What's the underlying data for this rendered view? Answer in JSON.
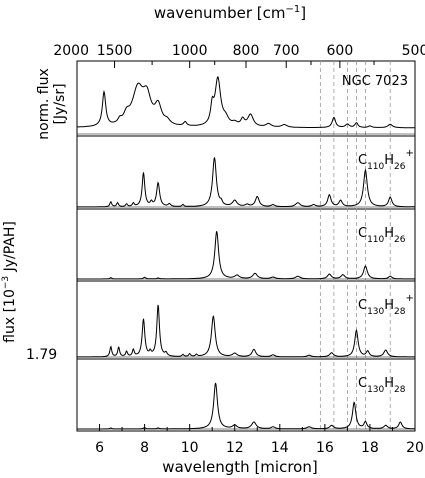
{
  "chart_data": {
    "type": "line",
    "top_axis": {
      "label": "wavenumber [cm",
      "label_sup": "−1",
      "label_end": "]",
      "ticks": [
        {
          "label": "2000",
          "value": 2000
        },
        {
          "label": "1500",
          "value": 1500
        },
        {
          "label": "1000",
          "value": 1000
        },
        {
          "label": "800",
          "value": 800
        },
        {
          "label": "700",
          "value": 700
        },
        {
          "label": "600",
          "value": 600
        },
        {
          "label": "500",
          "value": 500
        }
      ],
      "minor_ticks": [
        1200,
        900,
        650,
        550
      ]
    },
    "xlabel": "wavelength [micron]",
    "xlim": [
      5,
      20
    ],
    "xticks": [
      6,
      8,
      10,
      12,
      14,
      16,
      18,
      20
    ],
    "ylabel_top": [
      "norm. flux",
      "[Jy/sr]"
    ],
    "ylabel_bottom": "flux [10",
    "ylabel_bottom_sup": "−3",
    "ylabel_bottom_end": " Jy/PAH]",
    "scale_label": "1.79",
    "reference_lines": [
      15.8,
      16.4,
      17.0,
      17.4,
      17.8,
      18.9
    ],
    "series": [
      {
        "name": "NGC 7023",
        "name_parts": [],
        "baseline": 0.18,
        "peaks": [
          [
            6.2,
            1.0,
            0.09
          ],
          [
            6.9,
            0.12,
            0.1
          ],
          [
            7.2,
            0.25,
            0.15
          ],
          [
            7.7,
            1.08,
            0.3
          ],
          [
            8.1,
            0.75,
            0.22
          ],
          [
            8.6,
            0.55,
            0.18
          ],
          [
            9.0,
            0.12,
            0.15
          ],
          [
            9.8,
            0.12,
            0.08
          ],
          [
            11.0,
            0.5,
            0.08
          ],
          [
            11.25,
            1.4,
            0.15
          ],
          [
            11.6,
            0.2,
            0.15
          ],
          [
            12.0,
            0.1,
            0.15
          ],
          [
            12.35,
            0.2,
            0.1
          ],
          [
            12.7,
            0.36,
            0.15
          ],
          [
            13.5,
            0.1,
            0.15
          ],
          [
            14.2,
            0.08,
            0.15
          ],
          [
            16.4,
            0.3,
            0.09
          ],
          [
            17.0,
            0.1,
            0.1
          ],
          [
            17.4,
            0.14,
            0.08
          ],
          [
            18.0,
            0.05,
            0.1
          ],
          [
            18.9,
            0.1,
            0.12
          ]
        ]
      },
      {
        "name": "",
        "name_parts": [
          "C",
          "110",
          "H",
          "26",
          "+"
        ],
        "baseline": 0,
        "peaks": [
          [
            6.5,
            0.15,
            0.05
          ],
          [
            6.8,
            0.12,
            0.05
          ],
          [
            7.2,
            0.08,
            0.05
          ],
          [
            7.5,
            0.1,
            0.05
          ],
          [
            7.95,
            1.0,
            0.07
          ],
          [
            8.3,
            0.12,
            0.06
          ],
          [
            8.6,
            0.7,
            0.08
          ],
          [
            9.1,
            0.08,
            0.07
          ],
          [
            9.7,
            0.06,
            0.05
          ],
          [
            11.1,
            1.45,
            0.1
          ],
          [
            11.4,
            0.1,
            0.06
          ],
          [
            12.0,
            0.18,
            0.12
          ],
          [
            12.55,
            0.06,
            0.1
          ],
          [
            13.0,
            0.3,
            0.1
          ],
          [
            13.7,
            0.06,
            0.1
          ],
          [
            14.8,
            0.12,
            0.12
          ],
          [
            15.5,
            0.06,
            0.1
          ],
          [
            16.2,
            0.35,
            0.09
          ],
          [
            16.7,
            0.18,
            0.09
          ],
          [
            17.8,
            1.08,
            0.1
          ],
          [
            18.9,
            0.28,
            0.09
          ]
        ]
      },
      {
        "name": "",
        "name_parts": [
          "C",
          "110",
          "H",
          "26",
          ""
        ],
        "baseline": 0,
        "peaks": [
          [
            6.5,
            0.04,
            0.05
          ],
          [
            8.0,
            0.05,
            0.06
          ],
          [
            8.6,
            0.03,
            0.06
          ],
          [
            11.2,
            1.4,
            0.1
          ],
          [
            12.1,
            0.1,
            0.12
          ],
          [
            12.9,
            0.16,
            0.12
          ],
          [
            13.7,
            0.05,
            0.12
          ],
          [
            14.8,
            0.08,
            0.12
          ],
          [
            16.2,
            0.14,
            0.1
          ],
          [
            16.8,
            0.12,
            0.1
          ],
          [
            17.8,
            0.38,
            0.1
          ],
          [
            18.9,
            0.08,
            0.09
          ]
        ]
      },
      {
        "name": "",
        "name_parts": [
          "C",
          "130",
          "H",
          "28",
          "+"
        ],
        "baseline": 0,
        "peaks": [
          [
            6.5,
            0.3,
            0.05
          ],
          [
            6.85,
            0.28,
            0.05
          ],
          [
            7.2,
            0.15,
            0.05
          ],
          [
            7.5,
            0.2,
            0.05
          ],
          [
            7.95,
            1.1,
            0.07
          ],
          [
            8.25,
            0.12,
            0.05
          ],
          [
            8.6,
            1.52,
            0.07
          ],
          [
            8.95,
            0.1,
            0.06
          ],
          [
            9.7,
            0.06,
            0.05
          ],
          [
            10.0,
            0.08,
            0.05
          ],
          [
            10.3,
            0.06,
            0.05
          ],
          [
            11.05,
            1.2,
            0.1
          ],
          [
            12.0,
            0.1,
            0.12
          ],
          [
            12.85,
            0.22,
            0.1
          ],
          [
            13.7,
            0.06,
            0.1
          ],
          [
            15.3,
            0.05,
            0.1
          ],
          [
            16.3,
            0.12,
            0.1
          ],
          [
            17.4,
            0.78,
            0.09
          ],
          [
            17.9,
            0.16,
            0.08
          ],
          [
            18.7,
            0.2,
            0.1
          ]
        ]
      },
      {
        "name": "",
        "name_parts": [
          "C",
          "130",
          "H",
          "28",
          ""
        ],
        "baseline": 0,
        "peaks": [
          [
            6.5,
            0.03,
            0.05
          ],
          [
            8.0,
            0.04,
            0.06
          ],
          [
            8.6,
            0.03,
            0.06
          ],
          [
            11.15,
            1.35,
            0.1
          ],
          [
            12.0,
            0.1,
            0.12
          ],
          [
            12.85,
            0.2,
            0.12
          ],
          [
            13.7,
            0.06,
            0.1
          ],
          [
            15.3,
            0.06,
            0.12
          ],
          [
            16.3,
            0.1,
            0.1
          ],
          [
            17.3,
            0.78,
            0.09
          ],
          [
            17.8,
            0.2,
            0.08
          ],
          [
            18.7,
            0.1,
            0.1
          ],
          [
            19.35,
            0.2,
            0.09
          ]
        ]
      }
    ]
  }
}
